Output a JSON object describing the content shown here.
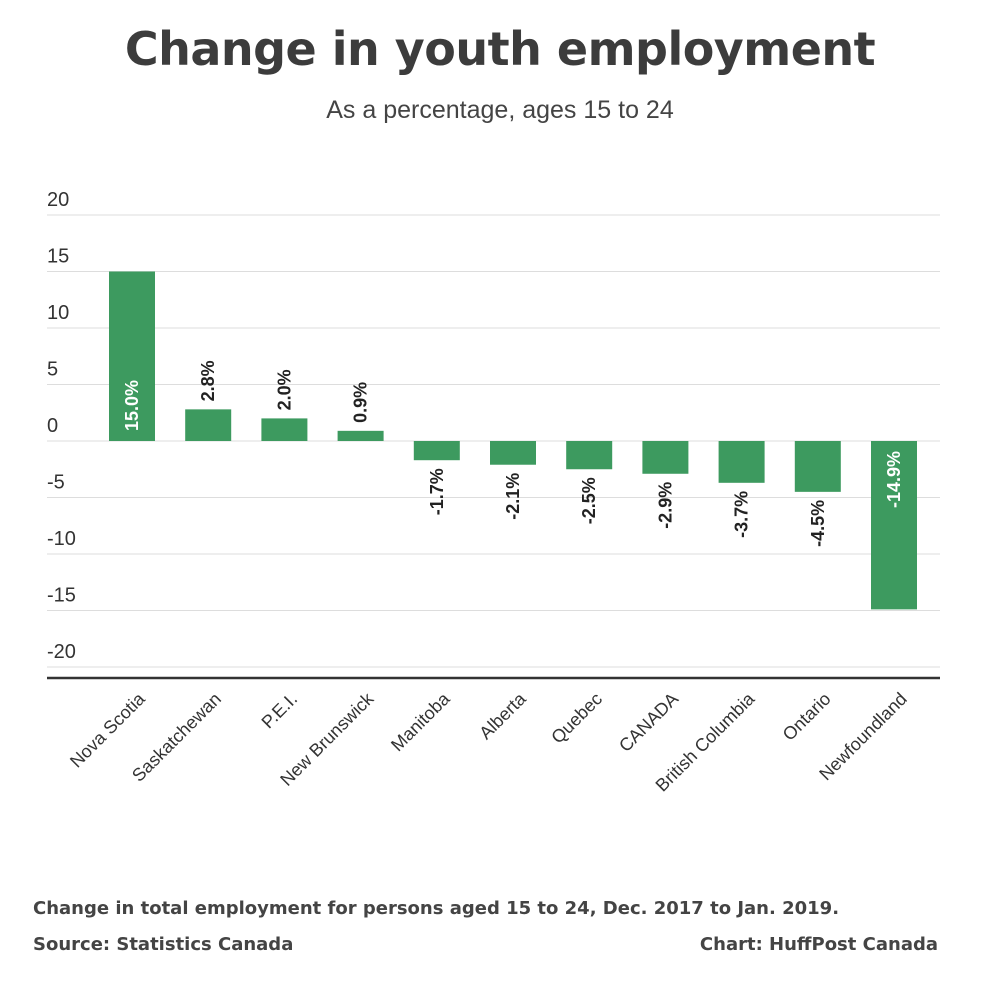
{
  "chart_data": {
    "type": "bar",
    "title": "Change in youth employment",
    "subtitle": "As a percentage, ages 15 to 24",
    "categories": [
      "Nova Scotia",
      "Saskatchewan",
      "P.E.I.",
      "New Brunswick",
      "Manitoba",
      "Alberta",
      "Quebec",
      "CANADA",
      "British Columbia",
      "Ontario",
      "Newfoundland"
    ],
    "values": [
      15.0,
      2.8,
      2.0,
      0.9,
      -1.7,
      -2.1,
      -2.5,
      -2.9,
      -3.7,
      -4.5,
      -14.9
    ],
    "data_labels": [
      "15.0%",
      "2.8%",
      "2.0%",
      "0.9%",
      "-1.7%",
      "-2.1%",
      "-2.5%",
      "-2.9%",
      "-3.7%",
      "-4.5%",
      "-14.9%"
    ],
    "yticks": [
      20,
      15,
      10,
      5,
      0,
      -5,
      -10,
      -15,
      -20
    ],
    "ylim": [
      -21,
      20
    ],
    "grid": true,
    "bar_color": "#3d9a5f"
  },
  "footer": {
    "note": "Change in total employment for persons aged 15 to 24, Dec. 2017 to Jan. 2019.",
    "source": "Source: Statistics Canada",
    "credit": "Chart: HuffPost Canada"
  }
}
